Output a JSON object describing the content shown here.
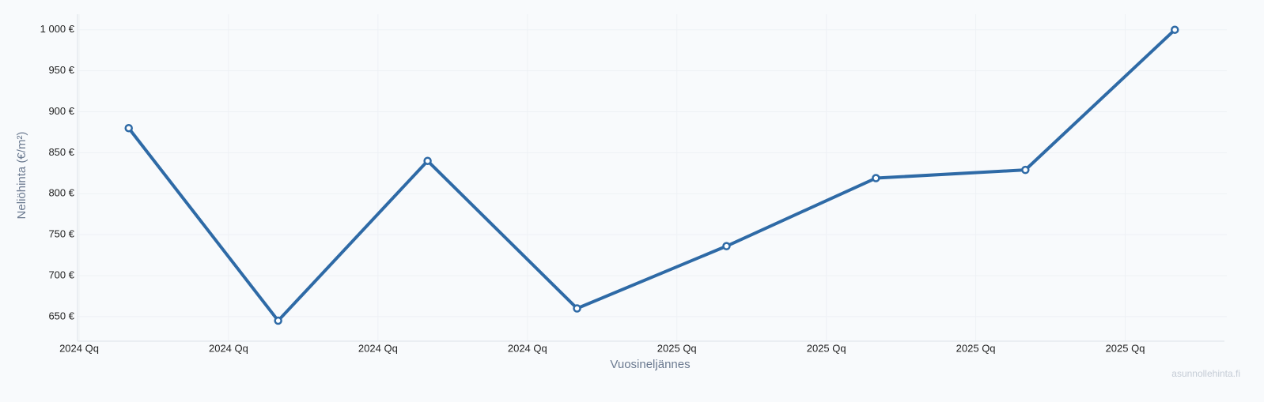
{
  "chart_data": {
    "type": "line",
    "x": [
      2024.083,
      2024.333,
      2024.583,
      2024.833,
      2025.083,
      2025.333,
      2025.583,
      2025.833
    ],
    "series": [
      {
        "name": "Neliöhinta",
        "color": "#2e6aa6",
        "values": [
          880,
          645,
          840,
          660,
          736,
          819,
          829,
          1000
        ]
      }
    ],
    "xlim": [
      2024,
      2025.92
    ],
    "xticks": [
      {
        "value": 2024,
        "label": "2024 Qq"
      },
      {
        "value": 2024.25,
        "label": "2024 Qq"
      },
      {
        "value": 2024.5,
        "label": "2024 Qq"
      },
      {
        "value": 2024.75,
        "label": "2024 Qq"
      },
      {
        "value": 2025,
        "label": "2025 Qq"
      },
      {
        "value": 2025.25,
        "label": "2025 Qq"
      },
      {
        "value": 2025.5,
        "label": "2025 Qq"
      },
      {
        "value": 2025.75,
        "label": "2025 Qq"
      }
    ],
    "ylim": [
      620,
      1019
    ],
    "yticks": [
      {
        "value": 650,
        "label": "650 €"
      },
      {
        "value": 700,
        "label": "700 €"
      },
      {
        "value": 750,
        "label": "750 €"
      },
      {
        "value": 800,
        "label": "800 €"
      },
      {
        "value": 850,
        "label": "850 €"
      },
      {
        "value": 900,
        "label": "900 €"
      },
      {
        "value": 950,
        "label": "950 €"
      },
      {
        "value": 1000,
        "label": "1 000 €"
      }
    ],
    "ylabel": "Neliöhinta (€/m²)",
    "xlabel": "Vuosineljännes",
    "watermark": "asunnollehinta.fi",
    "grid": true
  }
}
